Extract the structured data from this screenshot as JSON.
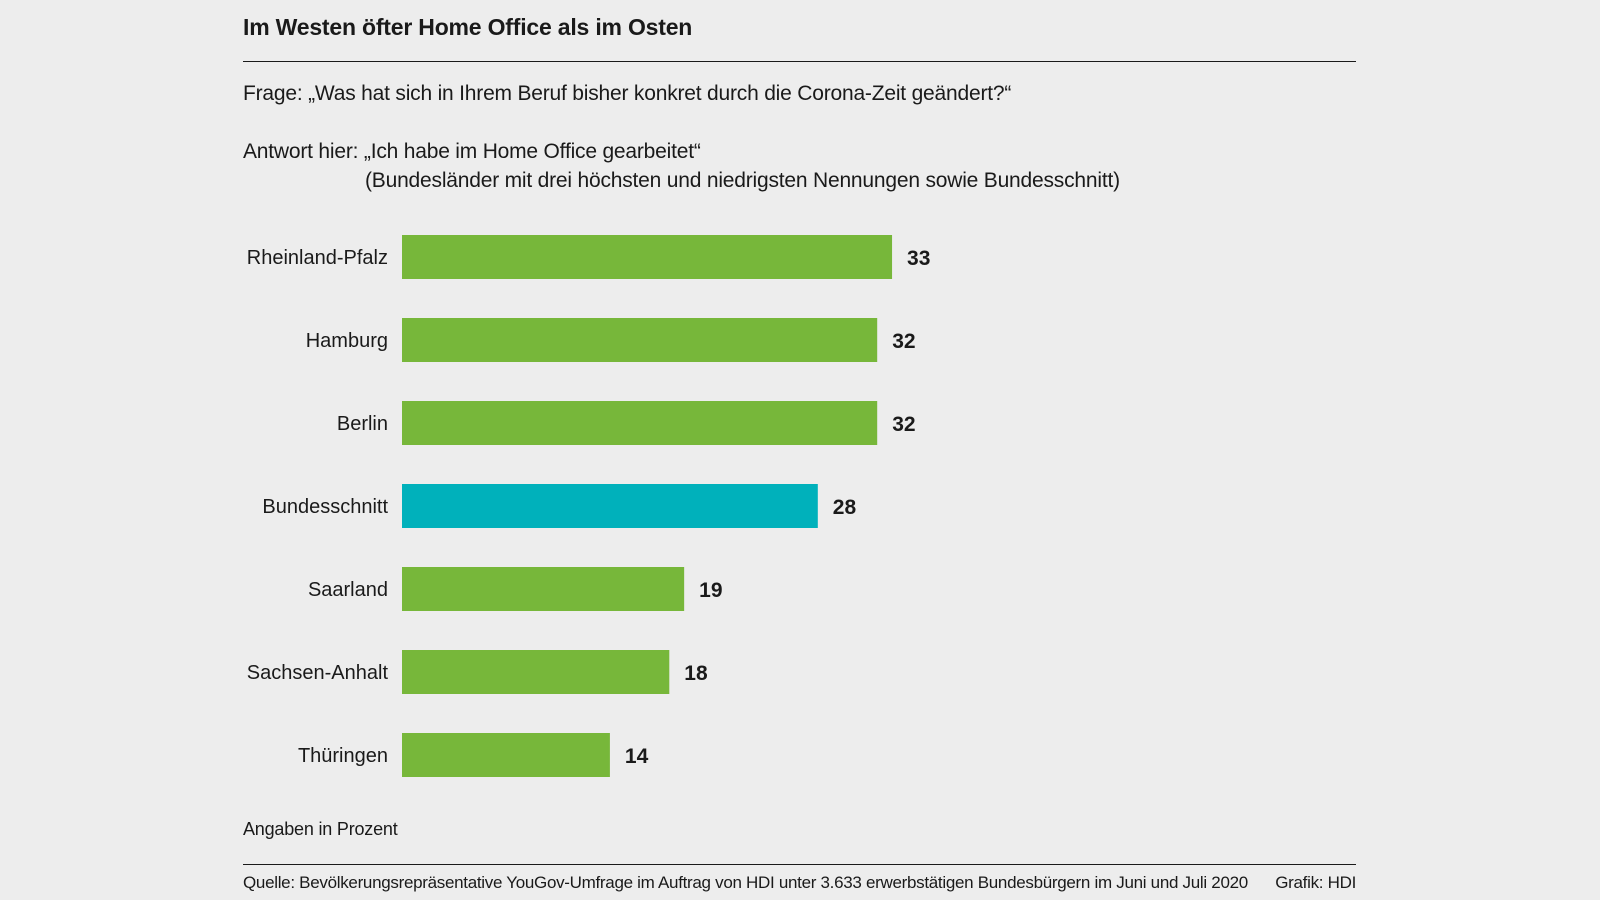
{
  "title": "Im Westen öfter Home Office als im Osten",
  "question": "Frage: „Was hat sich in Ihrem Beruf bisher konkret durch die Corona-Zeit geändert?“",
  "answer_label": "Antwort hier: „Ich habe im Home Office gearbeitet“",
  "answer_note": "(Bundesländer mit drei höchsten und niedrigsten Nennungen sowie Bundesschnitt)",
  "unit_note": "Angaben in Prozent",
  "source": "Quelle: Bevölkerungsrepräsentative YouGov-Umfrage im Auftrag von HDI unter 3.633 erwerbstätigen Bundesbürgern im Juni und Juli 2020",
  "credit": "Grafik: HDI",
  "colors": {
    "bar": "#77b73a",
    "highlight": "#00b1bb"
  },
  "chart_data": {
    "type": "bar",
    "orientation": "horizontal",
    "categories": [
      "Rheinland-Pfalz",
      "Hamburg",
      "Berlin",
      "Bundesschnitt",
      "Saarland",
      "Sachsen-Anhalt",
      "Thüringen"
    ],
    "values": [
      33,
      32,
      32,
      28,
      19,
      18,
      14
    ],
    "highlight_index": 3,
    "xlim": [
      0,
      100
    ],
    "grid": false,
    "legend": "none"
  }
}
